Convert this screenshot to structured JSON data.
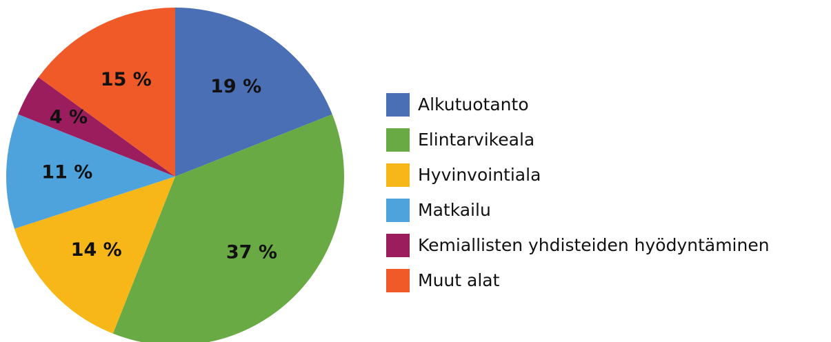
{
  "chart_data": {
    "type": "pie",
    "categories": [
      "Alkutuotanto",
      "Elintarvikeala",
      "Hyvinvointiala",
      "Matkailu",
      "Kemiallisten yhdisteiden hyödyntäminen",
      "Muut alat"
    ],
    "values": [
      19,
      37,
      14,
      11,
      4,
      15
    ],
    "value_labels": [
      "19 %",
      "37 %",
      "14 %",
      "11 %",
      "4 %",
      "15 %"
    ],
    "colors": [
      "#4a6fb5",
      "#6aaa44",
      "#f7b718",
      "#4fa3dc",
      "#9b1d5e",
      "#f05a28"
    ],
    "legend": "right"
  }
}
